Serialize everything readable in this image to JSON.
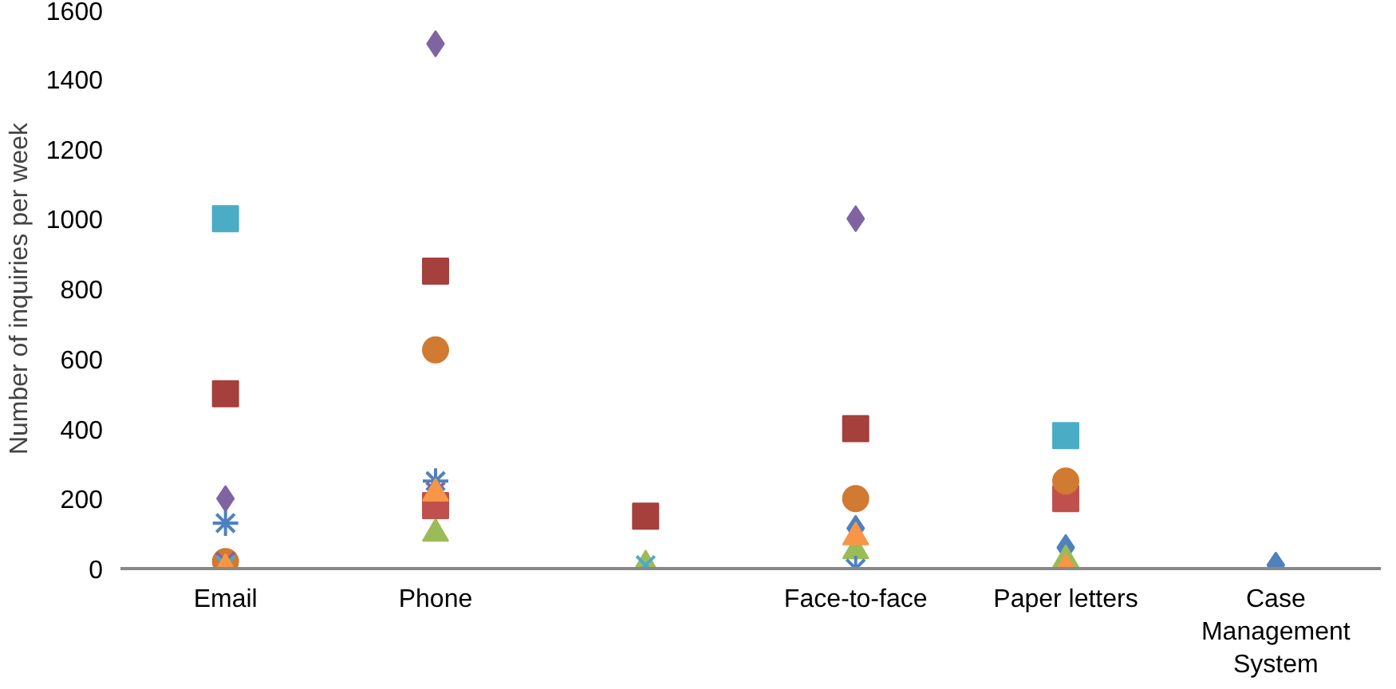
{
  "chart_data": {
    "type": "scatter",
    "ylabel": "Number of inquiries per week",
    "categories": [
      "Email",
      "Phone",
      null,
      "Face-to-face",
      "Paper letters",
      "Case Management System"
    ],
    "ylim": [
      0,
      1600
    ],
    "yticks": [
      0,
      200,
      400,
      600,
      800,
      1000,
      1200,
      1400,
      1600
    ],
    "grid": false,
    "series": [
      {
        "color": "#4f81bd",
        "marker": "diamond",
        "values": [
          null,
          null,
          null,
          115,
          60,
          10
        ]
      },
      {
        "color": "#a5403d",
        "marker": "square",
        "values": [
          500,
          850,
          150,
          400,
          null,
          null
        ]
      },
      {
        "color": "#9bbb59",
        "marker": "triangle",
        "values": [
          null,
          100,
          10,
          50,
          25,
          null
        ]
      },
      {
        "color": "#8064a2",
        "marker": "diamond",
        "values": [
          200,
          1500,
          null,
          1000,
          null,
          null
        ]
      },
      {
        "color": "#4bacc6",
        "marker": "square",
        "values": [
          1000,
          null,
          null,
          null,
          380,
          null
        ]
      },
      {
        "color": "#c0504d",
        "marker": "square",
        "values": [
          null,
          180,
          null,
          null,
          200,
          null
        ]
      },
      {
        "color": "#d07a32",
        "marker": "circle",
        "values": [
          20,
          625,
          null,
          200,
          250,
          null
        ]
      },
      {
        "color": "#4f81bd",
        "marker": "cross",
        "values": [
          130,
          250,
          null,
          0,
          null,
          null
        ]
      },
      {
        "color": "#8064a2",
        "marker": "x",
        "values": [
          20,
          220,
          null,
          null,
          null,
          null
        ]
      },
      {
        "color": "#4bacc6",
        "marker": "x",
        "values": [
          10,
          null,
          10,
          null,
          null,
          null
        ]
      },
      {
        "color": "#f79646",
        "marker": "triangle",
        "values": [
          0,
          215,
          null,
          90,
          0,
          null
        ]
      }
    ]
  }
}
